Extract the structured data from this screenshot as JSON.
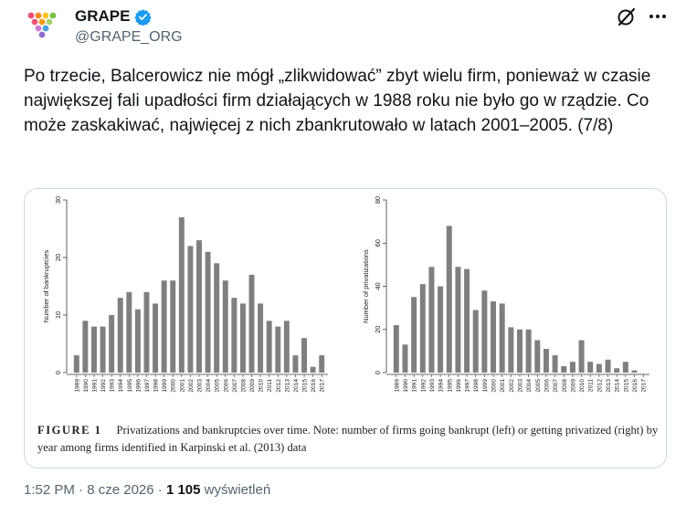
{
  "author": {
    "name": "GRAPE",
    "handle": "@GRAPE_ORG"
  },
  "tweet": {
    "text": "Po trzecie, Balcerowicz nie mógł „zlikwidować” zbyt wielu firm, ponieważ w czasie największej fali upadłości firm działających w 1988 roku nie było go w rządzie. Co może zaskakiwać, najwięcej z nich zbankrutowało w latach 2001–2005. (7/8)"
  },
  "figure": {
    "caption_label": "FIGURE 1",
    "caption_text": "Privatizations and bankruptcies over time. Note: number of firms going bankrupt (left) or getting privatized (right) by year among firms identified in Karpinski et al. (2013) data"
  },
  "chart_data": [
    {
      "type": "bar",
      "ylabel": "Number of bankruptcies",
      "ylim": [
        0,
        30
      ],
      "yticks": [
        0,
        10,
        20,
        30
      ],
      "categories": [
        "1989",
        "1990",
        "1991",
        "1992",
        "1993",
        "1994",
        "1995",
        "1996",
        "1997",
        "1998",
        "1999",
        "2000",
        "2001",
        "2002",
        "2003",
        "2004",
        "2005",
        "2006",
        "2007",
        "2008",
        "2009",
        "2010",
        "2011",
        "2012",
        "2013",
        "2014",
        "2015",
        "2016",
        "2017"
      ],
      "values": [
        3,
        9,
        8,
        8,
        10,
        13,
        14,
        11,
        14,
        12,
        16,
        16,
        27,
        22,
        23,
        21,
        19,
        16,
        13,
        12,
        17,
        12,
        9,
        8,
        9,
        3,
        6,
        1,
        3
      ],
      "bar_color": "#7f7f7f"
    },
    {
      "type": "bar",
      "ylabel": "Number of privatizations",
      "ylim": [
        0,
        80
      ],
      "yticks": [
        0,
        20,
        40,
        60,
        80
      ],
      "categories": [
        "1989",
        "1990",
        "1991",
        "1992",
        "1993",
        "1994",
        "1995",
        "1996",
        "1997",
        "1998",
        "1999",
        "2000",
        "2001",
        "2002",
        "2003",
        "2004",
        "2005",
        "2006",
        "2007",
        "2008",
        "2009",
        "2010",
        "2011",
        "2012",
        "2013",
        "2014",
        "2015",
        "2016",
        "2017"
      ],
      "values": [
        22,
        13,
        35,
        41,
        49,
        40,
        68,
        49,
        48,
        29,
        38,
        33,
        32,
        21,
        20,
        20,
        15,
        11,
        8,
        3,
        5,
        15,
        5,
        4,
        6,
        2,
        5,
        1,
        0
      ],
      "bar_color": "#7f7f7f"
    }
  ],
  "footer": {
    "time": "1:52 PM",
    "date": "8 cze 2026",
    "views_count": "1 105",
    "views_label": "wyświetleń",
    "separator": "·"
  },
  "colors": {
    "text": "#0f1419",
    "muted": "#536471",
    "verified": "#1d9bf0",
    "border": "#cfd9de"
  }
}
